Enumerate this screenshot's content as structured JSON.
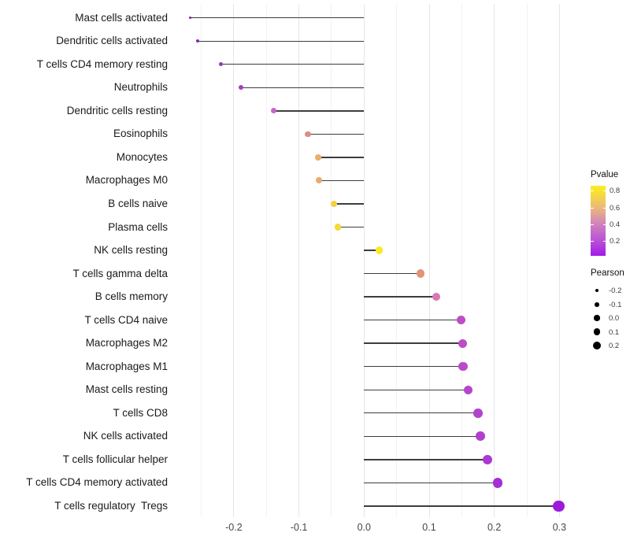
{
  "figure": {
    "background": "#ffffff"
  },
  "chart_data": {
    "type": "scatter",
    "variant": "horizontal-lollipop",
    "title": "",
    "xlabel": "",
    "ylabel": "",
    "xlim": [
      -0.296,
      0.33
    ],
    "x_tick_values": [
      -0.2,
      -0.1,
      0.0,
      0.1,
      0.2,
      0.3
    ],
    "x_tick_labels": [
      "-0.2",
      "-0.1",
      "0.0",
      "0.1",
      "0.2",
      "0.3"
    ],
    "grid": {
      "vertical_only": true,
      "minor_step": 0.05,
      "from": -0.25,
      "to": 0.3
    },
    "points": [
      {
        "category": "Mast cells activated",
        "pearson": -0.267,
        "color": "#7E1FA8",
        "diameter": 3.6
      },
      {
        "category": "Dendritic cells activated",
        "pearson": -0.255,
        "color": "#8826B0",
        "diameter": 3.9
      },
      {
        "category": "T cells CD4 memory resting",
        "pearson": -0.22,
        "color": "#9A33BB",
        "diameter": 5.0
      },
      {
        "category": "Neutrophils",
        "pearson": -0.189,
        "color": "#A53DC3",
        "diameter": 6.0
      },
      {
        "category": "Dendritic cells resting",
        "pearson": -0.139,
        "color": "#C565C9",
        "diameter": 7.0
      },
      {
        "category": "Eosinophils",
        "pearson": -0.086,
        "color": "#DC8E85",
        "diameter": 7.6
      },
      {
        "category": "Monocytes",
        "pearson": -0.071,
        "color": "#ECAE68",
        "diameter": 7.9
      },
      {
        "category": "Macrophages M0",
        "pearson": -0.069,
        "color": "#EAAB6D",
        "diameter": 7.9
      },
      {
        "category": "B cells naive",
        "pearson": -0.046,
        "color": "#F2D13F",
        "diameter": 8.3
      },
      {
        "category": "Plasma cells",
        "pearson": -0.04,
        "color": "#F4DA37",
        "diameter": 8.4
      },
      {
        "category": "NK cells resting",
        "pearson": 0.023,
        "color": "#F8EB23",
        "diameter": 9.4
      },
      {
        "category": "T cells gamma delta",
        "pearson": 0.087,
        "color": "#E39377",
        "diameter": 10.2
      },
      {
        "category": "B cells memory",
        "pearson": 0.111,
        "color": "#D778B3",
        "diameter": 10.6
      },
      {
        "category": "T cells CD4 naive",
        "pearson": 0.149,
        "color": "#BD4EC6",
        "diameter": 11.1
      },
      {
        "category": "Macrophages M2",
        "pearson": 0.151,
        "color": "#BC4CC7",
        "diameter": 11.1
      },
      {
        "category": "Macrophages M1",
        "pearson": 0.152,
        "color": "#BB4AC8",
        "diameter": 11.1
      },
      {
        "category": "Mast cells resting",
        "pearson": 0.16,
        "color": "#B546CB",
        "diameter": 11.3
      },
      {
        "category": "T cells CD8",
        "pearson": 0.175,
        "color": "#B243CD",
        "diameter": 11.6
      },
      {
        "category": "NK cells activated",
        "pearson": 0.179,
        "color": "#B041CE",
        "diameter": 11.7
      },
      {
        "category": "T cells follicular helper",
        "pearson": 0.189,
        "color": "#AA3AD2",
        "diameter": 11.9
      },
      {
        "category": "T cells CD4 memory activated",
        "pearson": 0.205,
        "color": "#A52ED7",
        "diameter": 12.3
      },
      {
        "category": "T cells regulatory  Tregs",
        "pearson": 0.299,
        "color": "#9D1ADC",
        "diameter": 14.6
      }
    ],
    "legend_position": "right",
    "legends": {
      "color": {
        "title": "Pvalue",
        "tick_labels": [
          "0.8",
          "0.6",
          "0.4",
          "0.2"
        ],
        "gradient_stops": [
          {
            "pos": 0,
            "color": "#A21AE8"
          },
          {
            "pos": 21,
            "color": "#B94FD7"
          },
          {
            "pos": 45,
            "color": "#D082BD"
          },
          {
            "pos": 69,
            "color": "#EDB979"
          },
          {
            "pos": 93,
            "color": "#F8E42D"
          },
          {
            "pos": 100,
            "color": "#FAEE21"
          }
        ]
      },
      "size": {
        "title": "Pearson",
        "dot_color": "#000000",
        "entries": [
          {
            "label": "-0.2",
            "diameter": 4.3
          },
          {
            "label": "-0.1",
            "diameter": 5.7
          },
          {
            "label": "0.0",
            "diameter": 7.3
          },
          {
            "label": "0.1",
            "diameter": 8.7
          },
          {
            "label": "0.2",
            "diameter": 10.0
          }
        ]
      }
    },
    "colors": {
      "stem": "#3d3d3d",
      "grid_major": "#e6e6e6",
      "grid_minor": "#f2f2f2",
      "axis_text": "#474747",
      "category_text": "#1a1a1a"
    }
  }
}
